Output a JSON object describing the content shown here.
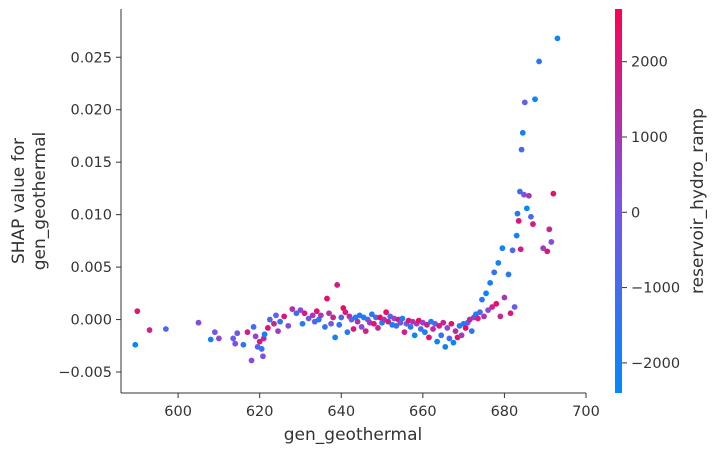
{
  "chart_data": {
    "type": "scatter",
    "xlabel": "gen_geothermal",
    "ylabel_lines": [
      "SHAP value for",
      "gen_geothermal"
    ],
    "xlim": [
      586,
      700
    ],
    "ylim": [
      -0.007,
      0.0296
    ],
    "xticks": [
      600,
      620,
      640,
      660,
      680,
      700
    ],
    "xtick_labels": [
      "600",
      "620",
      "640",
      "660",
      "680",
      "700"
    ],
    "yticks": [
      -0.005,
      0.0,
      0.005,
      0.01,
      0.015,
      0.02,
      0.025
    ],
    "ytick_labels": [
      "−0.005",
      "0.000",
      "0.005",
      "0.010",
      "0.015",
      "0.020",
      "0.025"
    ],
    "grid": false,
    "colorbar": {
      "label": "reservoir_hydro_ramp",
      "range": [
        -2400,
        2700
      ],
      "ticks": [
        -2000,
        -1000,
        0,
        1000,
        2000
      ],
      "tick_labels": [
        "−2000",
        "−1000",
        "0",
        "1000",
        "2000"
      ],
      "colors": [
        "#008afb",
        "#7c52e6",
        "#ff0052"
      ]
    },
    "points": [
      [
        589.5,
        -0.0024,
        -2300
      ],
      [
        590,
        0.0008,
        2000
      ],
      [
        593,
        -0.001,
        1500
      ],
      [
        597,
        -0.0009,
        -800
      ],
      [
        605,
        -0.0003,
        300
      ],
      [
        608,
        -0.0019,
        -1900
      ],
      [
        609,
        -0.0012,
        -100
      ],
      [
        610,
        -0.0018,
        500
      ],
      [
        613.5,
        -0.0018,
        -300
      ],
      [
        614,
        -0.0023,
        200
      ],
      [
        614.5,
        -0.0013,
        -200
      ],
      [
        616,
        -0.0024,
        -1400
      ],
      [
        617,
        -0.0012,
        1800
      ],
      [
        618,
        -0.0039,
        400
      ],
      [
        618.5,
        -0.0007,
        -1200
      ],
      [
        619,
        -0.0016,
        600
      ],
      [
        619.5,
        -0.0026,
        -600
      ],
      [
        620,
        -0.0021,
        1900
      ],
      [
        620.5,
        -0.0028,
        -1300
      ],
      [
        620.8,
        -0.0035,
        200
      ],
      [
        621,
        -0.0018,
        1500
      ],
      [
        621.2,
        -0.0014,
        -2000
      ],
      [
        622,
        -0.0008,
        2200
      ],
      [
        622.5,
        0.0,
        -800
      ],
      [
        623.5,
        -0.0004,
        1600
      ],
      [
        624,
        0.0004,
        -500
      ],
      [
        624.5,
        -0.0011,
        900
      ],
      [
        625,
        -0.0002,
        -1500
      ],
      [
        626,
        0.0003,
        2100
      ],
      [
        627,
        -0.0006,
        300
      ],
      [
        628,
        0.001,
        1300
      ],
      [
        629,
        0.0006,
        -1100
      ],
      [
        630,
        0.0009,
        400
      ],
      [
        630.5,
        -0.0004,
        -1700
      ],
      [
        631,
        0.0006,
        1900
      ],
      [
        632,
        0.0001,
        -300
      ],
      [
        633,
        0.0004,
        1000
      ],
      [
        633.5,
        -0.0002,
        -600
      ],
      [
        634,
        0.0008,
        2200
      ],
      [
        634.5,
        0.0,
        -1800
      ],
      [
        635,
        0.0004,
        900
      ],
      [
        636,
        -0.0007,
        -1300
      ],
      [
        636.5,
        0.002,
        2300
      ],
      [
        637,
        0.0006,
        1100
      ],
      [
        637.5,
        -0.0004,
        -200
      ],
      [
        638,
        0.0002,
        1700
      ],
      [
        638.5,
        -0.0017,
        -2000
      ],
      [
        639,
        0.0033,
        2000
      ],
      [
        639.5,
        -0.0005,
        -1500
      ],
      [
        640,
        0.0002,
        -900
      ],
      [
        640.5,
        0.0011,
        2400
      ],
      [
        641,
        0.0007,
        1800
      ],
      [
        641.5,
        -0.0012,
        -1700
      ],
      [
        642,
        0.0003,
        1400
      ],
      [
        642.5,
        0.0,
        -600
      ],
      [
        643,
        -0.0009,
        2100
      ],
      [
        643.5,
        0.0002,
        -1900
      ],
      [
        644,
        -0.0002,
        1200
      ],
      [
        644.5,
        0.0004,
        -1300
      ],
      [
        645,
        -0.0007,
        400
      ],
      [
        645.5,
        0.0002,
        -2100
      ],
      [
        646,
        -0.0011,
        1700
      ],
      [
        646.5,
        0.0,
        -400
      ],
      [
        647,
        -0.0003,
        900
      ],
      [
        647.5,
        0.0005,
        -1600
      ],
      [
        648,
        -0.0004,
        2200
      ],
      [
        648.5,
        0.0002,
        -1000
      ],
      [
        649,
        -0.0008,
        1500
      ],
      [
        649.5,
        0.0002,
        2500
      ],
      [
        650,
        -0.0003,
        -1800
      ],
      [
        650.5,
        0.0,
        1100
      ],
      [
        651,
        0.0007,
        2300
      ],
      [
        651.5,
        -0.0002,
        2000
      ],
      [
        652,
        0.0003,
        -900
      ],
      [
        652.5,
        -0.0005,
        -2100
      ],
      [
        653,
        0.0001,
        600
      ],
      [
        653.5,
        -0.0006,
        -1400
      ],
      [
        654,
        0.0,
        1900
      ],
      [
        654.5,
        -0.0003,
        300
      ],
      [
        655,
        0.0001,
        -2000
      ],
      [
        655.5,
        -0.0012,
        1700
      ],
      [
        656,
        -0.0004,
        -700
      ],
      [
        656.5,
        -0.0001,
        2100
      ],
      [
        657,
        -0.0007,
        -1500
      ],
      [
        657.5,
        -0.0002,
        1200
      ],
      [
        658,
        -0.0015,
        -2200
      ],
      [
        658.5,
        -0.0004,
        900
      ],
      [
        659,
        -0.0001,
        2400
      ],
      [
        659.5,
        -0.0009,
        -1200
      ],
      [
        660,
        -0.0003,
        600
      ],
      [
        660.5,
        -0.0012,
        -1900
      ],
      [
        661,
        -0.0005,
        1800
      ],
      [
        661.5,
        -0.0017,
        2200
      ],
      [
        662,
        -0.0002,
        -1800
      ],
      [
        662.5,
        -0.0009,
        1300
      ],
      [
        663,
        -0.0004,
        -600
      ],
      [
        663.5,
        -0.0021,
        -2300
      ],
      [
        664,
        -0.0006,
        2000
      ],
      [
        664.5,
        -0.0015,
        -1400
      ],
      [
        665,
        -0.0003,
        1600
      ],
      [
        665.5,
        -0.0026,
        -2100
      ],
      [
        666,
        -0.0008,
        500
      ],
      [
        666.5,
        -0.0018,
        -1000
      ],
      [
        667,
        -0.0004,
        2300
      ],
      [
        667.5,
        -0.0022,
        -2200
      ],
      [
        668,
        -0.0011,
        1400
      ],
      [
        668.5,
        -0.0017,
        2100
      ],
      [
        669,
        -0.0006,
        -1700
      ],
      [
        669.5,
        -0.0015,
        900
      ],
      [
        670,
        -0.0004,
        -2000
      ],
      [
        670.5,
        -0.0008,
        2500
      ],
      [
        671,
        -0.0003,
        -500
      ],
      [
        671.5,
        0.0,
        1500
      ],
      [
        672,
        -0.0011,
        -1600
      ],
      [
        672.5,
        0.0002,
        700
      ],
      [
        673,
        0.0005,
        -2100
      ],
      [
        673.5,
        0.0001,
        1900
      ],
      [
        674,
        0.0007,
        -800
      ],
      [
        674.5,
        0.0019,
        -1500
      ],
      [
        675,
        0.0003,
        1100
      ],
      [
        675.5,
        0.0025,
        -2200
      ],
      [
        676,
        0.0009,
        400
      ],
      [
        676.5,
        0.0035,
        -1900
      ],
      [
        677,
        0.0012,
        1700
      ],
      [
        677.5,
        0.0045,
        -1300
      ],
      [
        678,
        0.0015,
        2300
      ],
      [
        678.5,
        0.0054,
        -2000
      ],
      [
        679,
        0.0003,
        1500
      ],
      [
        679.5,
        0.0068,
        -2100
      ],
      [
        680,
        0.0021,
        900
      ],
      [
        681,
        0.0043,
        -1600
      ],
      [
        681.5,
        0.0006,
        2000
      ],
      [
        682,
        0.0066,
        -700
      ],
      [
        682.5,
        0.0012,
        -200
      ],
      [
        683,
        0.008,
        -1900
      ],
      [
        683.2,
        0.0101,
        -1700
      ],
      [
        683.5,
        0.0094,
        2100
      ],
      [
        683.8,
        0.0122,
        -1300
      ],
      [
        684,
        0.0067,
        1800
      ],
      [
        684.2,
        0.0162,
        -1000
      ],
      [
        684.5,
        0.0178,
        -2000
      ],
      [
        684.8,
        0.0119,
        200
      ],
      [
        685,
        0.0207,
        -500
      ],
      [
        685.5,
        0.0106,
        -2200
      ],
      [
        686,
        0.0118,
        900
      ],
      [
        686.5,
        0.0098,
        -800
      ],
      [
        687,
        0.0091,
        1900
      ],
      [
        687.5,
        0.021,
        -2300
      ],
      [
        688.5,
        0.0246,
        -1500
      ],
      [
        689.5,
        0.0068,
        700
      ],
      [
        690.5,
        0.0065,
        2000
      ],
      [
        691,
        0.0086,
        1400
      ],
      [
        691.5,
        0.0074,
        300
      ],
      [
        692,
        0.012,
        2200
      ],
      [
        693,
        0.0268,
        -2100
      ]
    ]
  }
}
